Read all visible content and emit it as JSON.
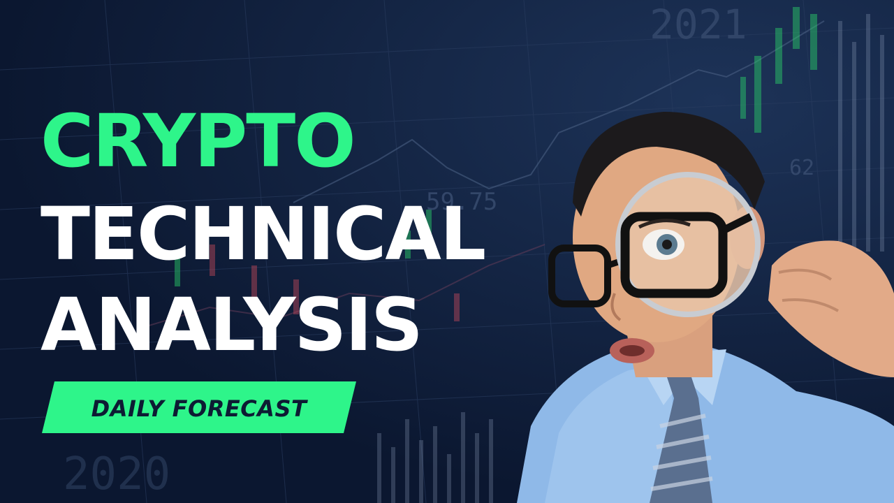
{
  "thumbnail": {
    "title_line_1": "CRYPTO",
    "title_line_2": "TECHNICAL",
    "title_line_3": "ANALYSIS",
    "badge_label": "DAILY FORECAST"
  },
  "background_text": {
    "year_top": "2021",
    "year_bottom": "2020",
    "value_mid": "59.75",
    "value_right": "62"
  },
  "colors": {
    "background": "#0d1b33",
    "accent_green": "#2ef58a",
    "title_white": "#ffffff",
    "badge_text": "#0d1b33"
  }
}
